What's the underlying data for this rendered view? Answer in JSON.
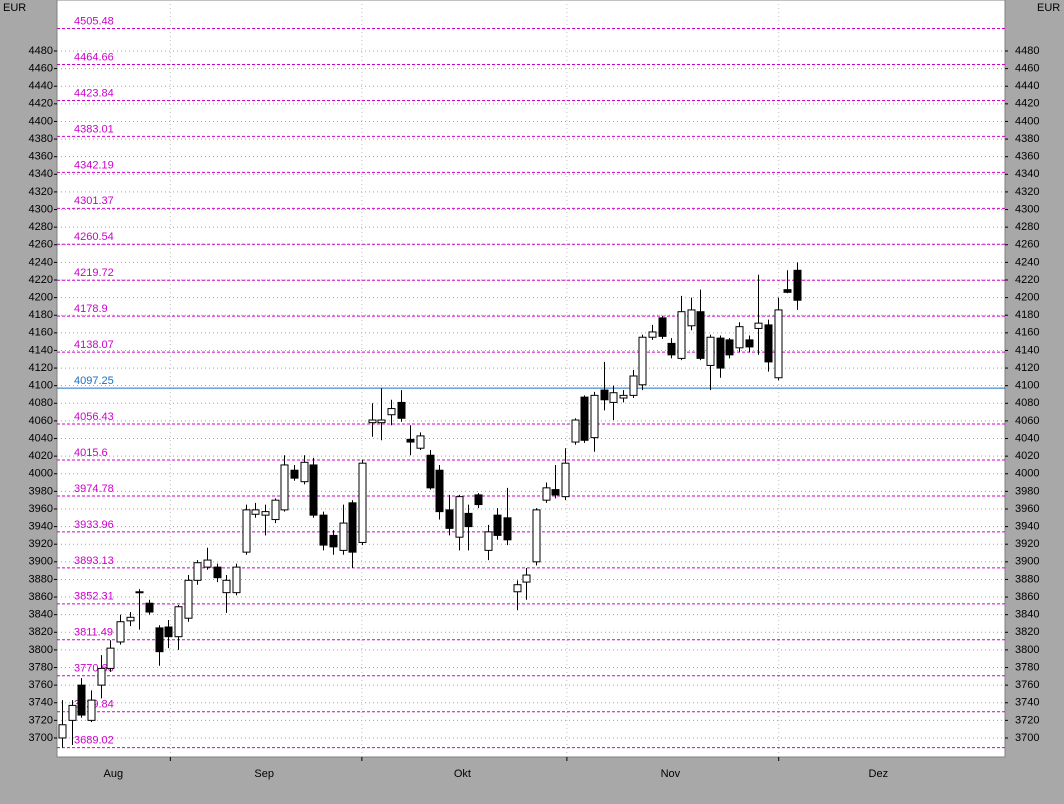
{
  "chart_data": {
    "type": "candlestick",
    "currency": "EUR",
    "categories": [
      null,
      null,
      null,
      null,
      null,
      null,
      null,
      null,
      null,
      null,
      null,
      null,
      null,
      null,
      null,
      null,
      null,
      null,
      null,
      null,
      null,
      null,
      null,
      null,
      null,
      null,
      null,
      null,
      null,
      null,
      null,
      null,
      null,
      null,
      null,
      null,
      null,
      null,
      null,
      null,
      null,
      null,
      null,
      null,
      null,
      null,
      null,
      null,
      null,
      null,
      null,
      null,
      null,
      null,
      null,
      null,
      null,
      null,
      null,
      null,
      null,
      null,
      null,
      null,
      null,
      null,
      null,
      null,
      null,
      null,
      null,
      null,
      null,
      null,
      null,
      null,
      null
    ],
    "open": [
      3700,
      3720,
      3760,
      3720,
      3760,
      3779,
      3809,
      3833,
      3866,
      3853,
      3825,
      3826,
      3815,
      3836,
      3879,
      3894,
      3894,
      3865,
      3865,
      3911,
      3954,
      3953,
      3948,
      3959,
      4004,
      3991,
      4010,
      3953,
      3930,
      3913,
      3967,
      3922,
      4058,
      4058,
      4067,
      4081,
      4039,
      4029,
      4021,
      4004,
      3959,
      3928,
      3955,
      3976,
      3913,
      3953,
      3950,
      3866,
      3877,
      3900,
      3970,
      3982,
      3974,
      4036,
      4087,
      4041,
      4095,
      4081,
      4086,
      4089,
      4101,
      4155,
      4177,
      4148,
      4131,
      4168,
      4184,
      4123,
      4154,
      4152,
      4143,
      4152,
      4165,
      4169,
      4109,
      4209,
      4231
    ],
    "high": [
      3743,
      3743,
      3768,
      3754,
      3794,
      3811,
      3840,
      3843,
      3869,
      3857,
      3828,
      3834,
      3851,
      3885,
      3902,
      3916,
      3898,
      3885,
      3898,
      3965,
      3967,
      3965,
      3972,
      4021,
      4010,
      4021,
      4018,
      3957,
      3936,
      3965,
      3970,
      4016,
      4080,
      4097,
      4084,
      4095,
      4055,
      4047,
      4027,
      4010,
      3976,
      3976,
      3965,
      3978,
      3942,
      3961,
      3984,
      3879,
      3893,
      3961,
      3990,
      4010,
      4029,
      4063,
      4089,
      4093,
      4127,
      4100,
      4095,
      4118,
      4158,
      4169,
      4179,
      4154,
      4202,
      4200,
      4209,
      4158,
      4157,
      4154,
      4172,
      4157,
      4226,
      4175,
      4200,
      4231,
      4240
    ],
    "low": [
      3689,
      3692,
      3723,
      3718,
      3745,
      3775,
      3806,
      3827,
      3823,
      3840,
      3782,
      3802,
      3800,
      3832,
      3874,
      3891,
      3877,
      3842,
      3862,
      3908,
      3950,
      3930,
      3944,
      3957,
      3992,
      3988,
      3950,
      3913,
      3908,
      3908,
      3893,
      3919,
      4042,
      4038,
      4055,
      4059,
      4021,
      4027,
      3982,
      3948,
      3930,
      3913,
      3913,
      3961,
      3902,
      3925,
      3919,
      3845,
      3857,
      3896,
      3967,
      3972,
      3970,
      4033,
      4035,
      4025,
      4072,
      4061,
      4081,
      4086,
      4095,
      4152,
      4153,
      4131,
      4129,
      4163,
      4129,
      4095,
      4109,
      4131,
      4138,
      4138,
      4135,
      4116,
      4106,
      4205,
      4186
    ],
    "close": [
      3715,
      3737,
      3726,
      3743,
      3779,
      3802,
      3832,
      3837,
      3866,
      3843,
      3798,
      3815,
      3849,
      3879,
      3899,
      3902,
      3882,
      3879,
      3894,
      3959,
      3959,
      3957,
      3970,
      4010,
      3995,
      4013,
      3953,
      3919,
      3917,
      3944,
      3911,
      4012,
      4061,
      4061,
      4074,
      4063,
      4036,
      4043,
      3984,
      3957,
      3938,
      3974,
      3940,
      3965,
      3934,
      3930,
      3925,
      3874,
      3885,
      3959,
      3984,
      3976,
      4012,
      4061,
      4038,
      4089,
      4084,
      4092,
      4089,
      4111,
      4155,
      4161,
      4156,
      4135,
      4184,
      4186,
      4131,
      4155,
      4120,
      4135,
      4167,
      4144,
      4171,
      4127,
      4186,
      4206,
      4197
    ],
    "up_color": "#ffffff",
    "down_color": "#000000",
    "xlim": [
      -0.52,
      97.5
    ],
    "xticks": [
      {
        "value": 5.3,
        "label": "Aug"
      },
      {
        "value": 20.9,
        "label": "Sep"
      },
      {
        "value": 41.4,
        "label": "Okt"
      },
      {
        "value": 62.9,
        "label": "Nov"
      },
      {
        "value": 84.4,
        "label": "Dez"
      }
    ],
    "xgrid": [
      11.2,
      31.0,
      52.2,
      74.1
    ],
    "ylim": [
      3678.4,
      4537.9
    ],
    "yticks": [
      3700,
      3720,
      3740,
      3760,
      3780,
      3800,
      3820,
      3840,
      3860,
      3880,
      3900,
      3920,
      3940,
      3960,
      3980,
      4000,
      4020,
      4040,
      4060,
      4080,
      4100,
      4120,
      4140,
      4160,
      4180,
      4200,
      4220,
      4240,
      4260,
      4280,
      4300,
      4320,
      4340,
      4360,
      4380,
      4400,
      4420,
      4440,
      4460,
      4480
    ],
    "grid": true,
    "levels": [
      {
        "value": 4505.48,
        "color": "#cc00cc"
      },
      {
        "value": 4464.66,
        "color": "#cc00cc"
      },
      {
        "value": 4423.84,
        "color": "#cc00cc"
      },
      {
        "value": 4383.01,
        "color": "#cc00cc"
      },
      {
        "value": 4342.19,
        "color": "#cc00cc"
      },
      {
        "value": 4301.37,
        "color": "#cc00cc"
      },
      {
        "value": 4260.54,
        "color": "#cc00cc"
      },
      {
        "value": 4219.72,
        "color": "#cc00cc"
      },
      {
        "value": 4178.9,
        "color": "#cc00cc"
      },
      {
        "value": 4138.07,
        "color": "#cc00cc"
      },
      {
        "value": 4097.25,
        "color": "#1a6fc4"
      },
      {
        "value": 4056.43,
        "color": "#cc00cc"
      },
      {
        "value": 4015.6,
        "color": "#cc00cc"
      },
      {
        "value": 3974.78,
        "color": "#cc00cc"
      },
      {
        "value": 3933.96,
        "color": "#cc00cc"
      },
      {
        "value": 3893.13,
        "color": "#cc00cc"
      },
      {
        "value": 3852.31,
        "color": "#cc00cc"
      },
      {
        "value": 3811.49,
        "color": "#cc00cc"
      },
      {
        "value": 3770.66,
        "color": "#cc00cc"
      },
      {
        "value": 3729.84,
        "color": "#cc00cc"
      },
      {
        "value": 3689.02,
        "color": "#cc00cc"
      }
    ]
  }
}
